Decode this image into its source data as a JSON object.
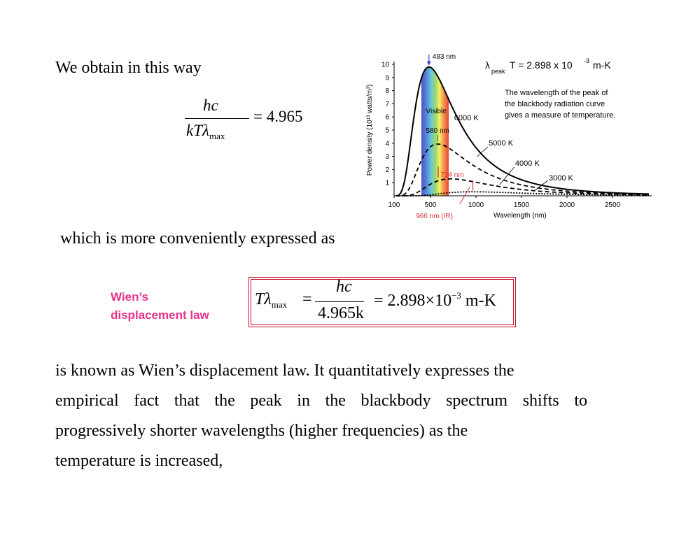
{
  "intro": "We obtain in this way",
  "eq1": {
    "num": "hc",
    "den_kt": "kT",
    "den_lambda": "λ",
    "den_sub": "max",
    "rhs": "= 4.965"
  },
  "conv": "which is more conveniently expressed as",
  "wien_label": {
    "line1": "Wien’s",
    "line2": "displacement law"
  },
  "eq2": {
    "lhs_t": "T",
    "lhs_lambda": "λ",
    "lhs_sub": "max",
    "equals": "=",
    "num": "hc",
    "den": "4.965k",
    "rhs_pre": "= 2.898×10",
    "rhs_exp": "−3",
    "rhs_unit": " m-K"
  },
  "paragraph": {
    "line1": "is known as Wien’s displacement law. It quantitatively expresses the",
    "line2_words": [
      "empirical",
      "fact",
      "that",
      "the",
      "peak",
      "in",
      "the",
      "blackbody",
      "spectrum",
      "shifts",
      "to"
    ],
    "line3": "progressively shorter  wavelengths  (higher  frequencies)  as  the",
    "line4": "temperature  is  increased,"
  },
  "chart_data": {
    "type": "line",
    "xlabel": "Wavelength (nm)",
    "ylabel": "Power density (10¹³ watts/m³)",
    "xlim": [
      100,
      2900
    ],
    "ylim": [
      0,
      10
    ],
    "x_ticks": [
      100,
      500,
      1000,
      1500,
      2000,
      2500
    ],
    "y_ticks": [
      1,
      2,
      3,
      4,
      5,
      6,
      7,
      8,
      9,
      10
    ],
    "series": [
      {
        "name": "6000 K",
        "temperature": 6000,
        "peak_nm": 483,
        "style": "solid"
      },
      {
        "name": "5000 K",
        "temperature": 5000,
        "peak_nm": 580,
        "style": "dashed"
      },
      {
        "name": "4000 K",
        "temperature": 4000,
        "peak_nm": 724,
        "style": "dashed"
      },
      {
        "name": "3000 K",
        "temperature": 3000,
        "peak_nm": 966,
        "style": "dotted"
      }
    ],
    "visible_band_nm": [
      400,
      700
    ],
    "annotations": {
      "peak_6000": "483 nm",
      "visible": "Visible",
      "peak_5000": "580 nm",
      "peak_4000": "724 nm",
      "peak_3000": "966 nm (IR)",
      "formula_lambda": "λ",
      "formula_sub": "peak",
      "formula_main": "T = 2.898  x 10",
      "formula_exp": "-3",
      "formula_unit": "m-K",
      "note1": "The wavelength of the peak of",
      "note2": "the blackbody radiation curve",
      "note3": "gives a measure of temperature."
    },
    "colors": {
      "annotation_red": "#e0303a",
      "peak_arrow_blue": "#3a3ad8",
      "peak_arrow_green": "#2a8a2a"
    }
  }
}
